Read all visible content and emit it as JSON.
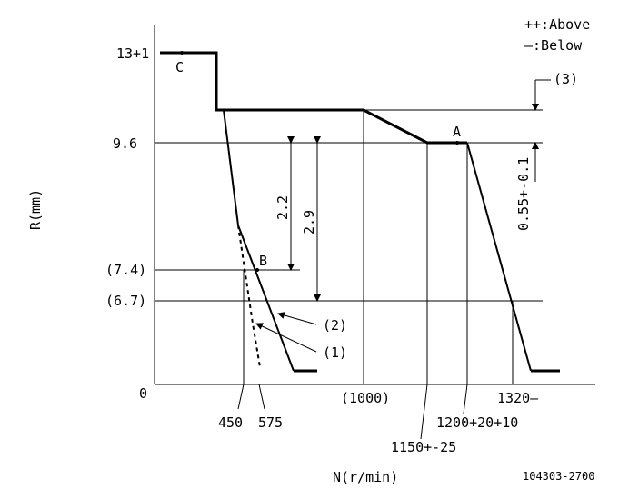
{
  "legend": {
    "above": "++:Above",
    "below": "—:Below"
  },
  "axes": {
    "y_label": "R(mm)",
    "x_label": "N(r/min)",
    "y_ticks": [
      "13+1",
      "9.6",
      "(7.4)",
      "(6.7)",
      "0"
    ],
    "x_ticks": [
      "450",
      "575",
      "(1000)",
      "1150+-25",
      "1200+20+10",
      "1320—"
    ]
  },
  "points": {
    "a": "A",
    "b": "B",
    "c": "C"
  },
  "dimensions": {
    "d1": "2.2",
    "d2": "2.9",
    "d3": "0.55+-0.1"
  },
  "callouts": {
    "c1": "(1)",
    "c2": "(2)",
    "c3": "(3)"
  },
  "doc_id": "104303-2700"
}
